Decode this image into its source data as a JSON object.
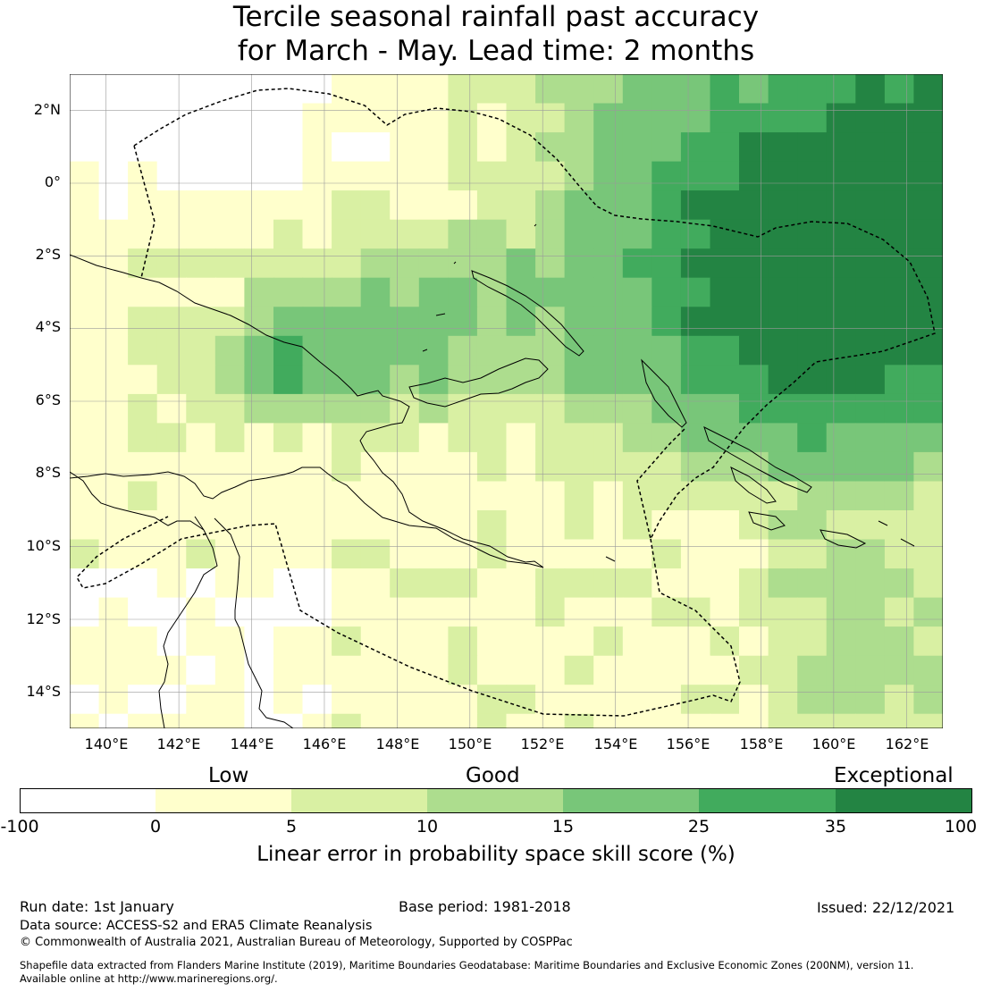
{
  "title_line1": "Tercile seasonal rainfall past accuracy",
  "title_line2": "for March - May. Lead time: 2 months",
  "map": {
    "lon_labels": [
      "140°E",
      "142°E",
      "144°E",
      "146°E",
      "148°E",
      "150°E",
      "152°E",
      "154°E",
      "156°E",
      "158°E",
      "160°E",
      "162°E"
    ],
    "lat_labels": [
      "2°N",
      "0°",
      "2°S",
      "4°S",
      "6°S",
      "8°S",
      "10°S",
      "12°S",
      "14°S"
    ],
    "lon_range": [
      139.0,
      163.0
    ],
    "lat_range": [
      -15.0,
      3.0
    ],
    "cell_size_deg": 0.8
  },
  "colorbar": {
    "category_labels": [
      "Low",
      "Good",
      "Exceptional"
    ],
    "tick_labels": [
      "-100",
      "0",
      "5",
      "10",
      "15",
      "25",
      "35",
      "100"
    ],
    "bins": [
      {
        "from": -100,
        "to": 0,
        "color": "#ffffff"
      },
      {
        "from": 0,
        "to": 5,
        "color": "#ffffcc"
      },
      {
        "from": 5,
        "to": 10,
        "color": "#d9f0a3"
      },
      {
        "from": 10,
        "to": 15,
        "color": "#addd8e"
      },
      {
        "from": 15,
        "to": 25,
        "color": "#78c679"
      },
      {
        "from": 25,
        "to": 35,
        "color": "#41ab5d"
      },
      {
        "from": 35,
        "to": 100,
        "color": "#238443"
      }
    ],
    "title": "Linear error in probability space skill score (%)"
  },
  "footer": {
    "run_date": "Run date: 1st January",
    "base_period": "Base period: 1981-2018",
    "issued": "Issued: 22/12/2021",
    "data_source": "Data source: ACCESS-S2 and ERA5 Climate Reanalysis",
    "copyright": "© Commonwealth of Australia 2021, Australian Bureau of Meteorology, Supported by COSPPac",
    "shapefile_line1": "Shapefile data extracted from Flanders Marine Institute (2019), Maritime Boundaries Geodatabase: Maritime Boundaries and Exclusive Economic Zones (200NM), version 11.",
    "shapefile_line2": "Available online at http://www.marineregions.org/."
  }
}
